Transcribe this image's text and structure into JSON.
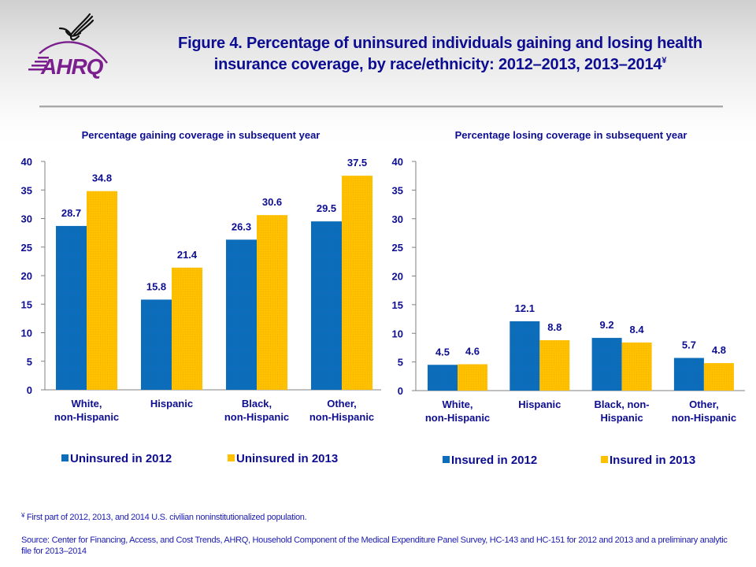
{
  "header": {
    "logo_text": "AHRQ",
    "title_line1": "Figure 4. Percentage of uninsured individuals  gaining and losing  health",
    "title_line2": "insurance coverage, by race/ethnicity: 2012–2013, 2013–2014",
    "title_marker": "¥"
  },
  "colors": {
    "series_blue": "#0a6ebd",
    "series_gold": "#ffc000",
    "text_navy": "#0d0d91",
    "axis_gray": "#808080",
    "logo_purple": "#7b1f8e"
  },
  "chart_data": [
    {
      "type": "bar",
      "title": "Percentage gaining coverage in subsequent year",
      "xlabel": "",
      "ylabel": "",
      "ylim": [
        0,
        40
      ],
      "yticks": [
        0,
        5,
        10,
        15,
        20,
        25,
        30,
        35,
        40
      ],
      "grid": false,
      "legend_position": "bottom",
      "categories": [
        [
          "White,",
          "non-Hispanic"
        ],
        [
          "Hispanic"
        ],
        [
          "Black,",
          "non-Hispanic"
        ],
        [
          "Other,",
          "non-Hispanic"
        ]
      ],
      "series": [
        {
          "name": "Uninsured in 2012",
          "color": "#0a6ebd",
          "values": [
            28.7,
            15.8,
            26.3,
            29.5
          ]
        },
        {
          "name": "Uninsured in 2013",
          "color": "#ffc000",
          "values": [
            34.8,
            21.4,
            30.6,
            37.5
          ]
        }
      ]
    },
    {
      "type": "bar",
      "title": "Percentage losing coverage in subsequent year",
      "xlabel": "",
      "ylabel": "",
      "ylim": [
        0,
        40
      ],
      "yticks": [
        0,
        5,
        10,
        15,
        20,
        25,
        30,
        35,
        40
      ],
      "grid": false,
      "legend_position": "bottom",
      "categories": [
        [
          "White,",
          "non-Hispanic"
        ],
        [
          "Hispanic"
        ],
        [
          "Black, non-",
          "Hispanic"
        ],
        [
          "Other,",
          "non-Hispanic"
        ]
      ],
      "series": [
        {
          "name": "Insured in 2012",
          "color": "#0a6ebd",
          "values": [
            4.5,
            12.1,
            9.2,
            5.7
          ]
        },
        {
          "name": "Insured in 2013",
          "color": "#ffc000",
          "values": [
            4.6,
            8.8,
            8.4,
            4.8
          ]
        }
      ]
    }
  ],
  "footer": {
    "footnote_marker": "¥",
    "footnote": " First part of 2012, 2013, and 2014 U.S. civilian noninstitutionalized population.",
    "source": "Source: Center for Financing, Access, and Cost Trends, AHRQ, Household Component of the Medical Expenditure Panel Survey,  HC-143 and HC-151 for 2012 and 2013 and a preliminary analytic file for 2013–2014"
  }
}
